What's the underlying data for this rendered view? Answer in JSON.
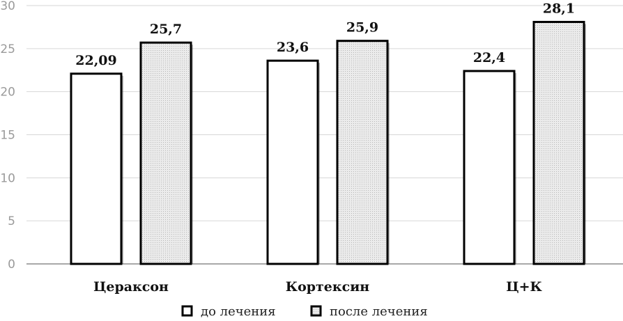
{
  "chart_data": {
    "type": "bar",
    "title": "",
    "xlabel": "",
    "ylabel": "",
    "ylim": [
      0,
      30
    ],
    "yticks": [
      0,
      5,
      10,
      15,
      20,
      25,
      30
    ],
    "grid": true,
    "legend_position": "bottom",
    "categories": [
      "Цераксон",
      "Кортексин",
      "Ц+К"
    ],
    "series": [
      {
        "name": "до лечения",
        "values": [
          22.09,
          23.6,
          22.4
        ],
        "labels": [
          "22,09",
          "23,6",
          "22,4"
        ],
        "fill": "#ffffff"
      },
      {
        "name": "после лечения",
        "values": [
          25.7,
          25.9,
          28.1
        ],
        "labels": [
          "25,7",
          "25,9",
          "28,1"
        ],
        "fill": "#e0e0e0"
      }
    ]
  },
  "colors": {
    "grid": "#d6d6d6",
    "axis": "#8c8c8c",
    "bar_stroke": "#000000"
  }
}
